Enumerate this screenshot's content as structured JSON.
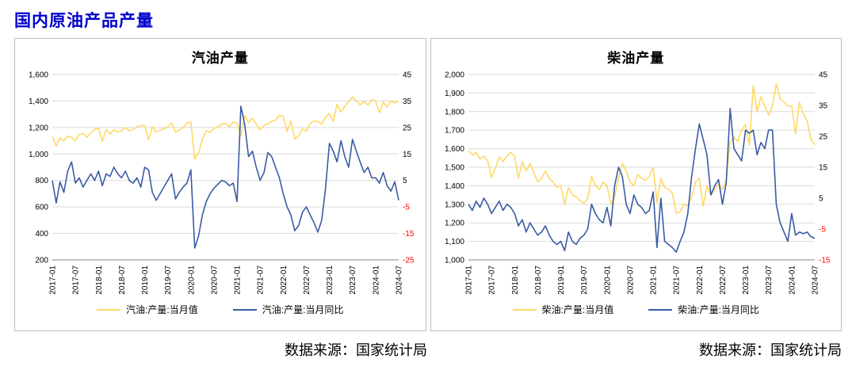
{
  "page": {
    "main_title": "国内原油产品产量",
    "source_left": "数据来源：国家统计局",
    "source_right": "数据来源：国家统计局"
  },
  "colors": {
    "value_line": "#FFD966",
    "yoy_line": "#3A5BA5",
    "negative_tick": "#FF0000",
    "grid": "#D9D9D9",
    "axis_line": "#808080",
    "title_blue": "#0000CC"
  },
  "chart_data": [
    {
      "type": "line",
      "title": "汽油产量",
      "x_start": "2017-01",
      "x_end": "2024-07",
      "x_tick_labels": [
        "2017-01",
        "2017-07",
        "2018-01",
        "2018-07",
        "2019-01",
        "2019-07",
        "2020-01",
        "2020-07",
        "2021-01",
        "2021-07",
        "2022-01",
        "2022-07",
        "2023-01",
        "2023-07",
        "2024-01",
        "2024-07"
      ],
      "left_axis": {
        "min": 200,
        "max": 1600,
        "ticks": [
          "1,600",
          "1,400",
          "1,200",
          "1,000",
          "800",
          "600",
          "400",
          "200"
        ]
      },
      "right_axis": {
        "min": -25,
        "max": 45,
        "ticks": [
          "45",
          "35",
          "25",
          "15",
          "5",
          "-5",
          "-15",
          "-25"
        ]
      },
      "legend_position": "bottom",
      "grid": true,
      "series": [
        {
          "name": "汽油:产量:当月值",
          "axis": "left",
          "color": "#FFD966",
          "values": [
            1130,
            1060,
            1120,
            1100,
            1135,
            1125,
            1100,
            1145,
            1155,
            1125,
            1160,
            1185,
            1195,
            1095,
            1185,
            1150,
            1185,
            1165,
            1175,
            1200,
            1175,
            1185,
            1205,
            1215,
            1215,
            1105,
            1205,
            1165,
            1180,
            1190,
            1205,
            1235,
            1165,
            1180,
            1200,
            1235,
            1240,
            960,
            1010,
            1110,
            1175,
            1165,
            1190,
            1205,
            1225,
            1230,
            1205,
            1240,
            1235,
            1135,
            1290,
            1235,
            1270,
            1225,
            1180,
            1215,
            1230,
            1245,
            1255,
            1290,
            1285,
            1170,
            1250,
            1115,
            1135,
            1190,
            1170,
            1230,
            1250,
            1245,
            1225,
            1275,
            1305,
            1245,
            1375,
            1315,
            1360,
            1395,
            1430,
            1400,
            1370,
            1395,
            1370,
            1410,
            1400,
            1310,
            1390,
            1355,
            1400,
            1385,
            1400
          ]
        },
        {
          "name": "汽油:产量:当月同比",
          "axis": "right",
          "color": "#3A5BA5",
          "values": [
            5,
            -3.5,
            4.5,
            0.5,
            8.5,
            12,
            4,
            6,
            2.5,
            5,
            7.5,
            5,
            8.5,
            3,
            7.5,
            6.5,
            10,
            7.5,
            6,
            8.5,
            5,
            4,
            6,
            2.5,
            10,
            9,
            0.5,
            -2.5,
            0,
            2.5,
            5,
            7.5,
            -2,
            0.5,
            2.5,
            4,
            9,
            -20.5,
            -16,
            -8,
            -3,
            0,
            2,
            3.5,
            5,
            4.5,
            3,
            4,
            -3,
            33,
            26,
            14,
            16,
            10,
            5,
            8,
            15.5,
            14,
            10,
            6,
            0,
            -5,
            -8,
            -14,
            -12,
            -7,
            -5,
            -8,
            -11,
            -14.5,
            -10,
            2,
            19,
            16,
            12,
            20,
            14,
            10,
            20.5,
            16,
            12,
            8,
            10,
            6,
            6,
            4,
            8,
            3,
            1,
            4.5,
            -2.5
          ]
        }
      ]
    },
    {
      "type": "line",
      "title": "柴油产量",
      "x_start": "2017-01",
      "x_end": "2024-07",
      "x_tick_labels": [
        "2017-01",
        "2017-07",
        "2018-01",
        "2018-07",
        "2019-01",
        "2019-07",
        "2020-01",
        "2020-07",
        "2021-01",
        "2021-07",
        "2022-01",
        "2022-07",
        "2023-01",
        "2023-07",
        "2024-01",
        "2024-07"
      ],
      "left_axis": {
        "min": 1000,
        "max": 2000,
        "ticks": [
          "2,000",
          "1,900",
          "1,800",
          "1,700",
          "1,600",
          "1,500",
          "1,400",
          "1,300",
          "1,200",
          "1,100",
          "1,000"
        ]
      },
      "right_axis": {
        "min": -15,
        "max": 45,
        "ticks": [
          "45",
          "35",
          "25",
          "15",
          "5",
          "-5",
          "-15"
        ]
      },
      "legend_position": "bottom",
      "grid": true,
      "series": [
        {
          "name": "柴油:产量:当月值",
          "axis": "left",
          "color": "#FFD966",
          "values": [
            1590,
            1565,
            1580,
            1545,
            1560,
            1535,
            1445,
            1495,
            1555,
            1530,
            1560,
            1580,
            1560,
            1440,
            1530,
            1480,
            1520,
            1470,
            1420,
            1440,
            1480,
            1440,
            1420,
            1390,
            1400,
            1300,
            1390,
            1350,
            1340,
            1320,
            1305,
            1330,
            1450,
            1400,
            1380,
            1420,
            1400,
            1300,
            1340,
            1440,
            1520,
            1480,
            1420,
            1400,
            1460,
            1440,
            1430,
            1450,
            1500,
            1310,
            1440,
            1390,
            1380,
            1360,
            1250,
            1260,
            1300,
            1290,
            1340,
            1420,
            1440,
            1290,
            1400,
            1350,
            1380,
            1410,
            1380,
            1430,
            1640,
            1660,
            1640,
            1700,
            1730,
            1620,
            1940,
            1800,
            1880,
            1830,
            1780,
            1830,
            1950,
            1870,
            1850,
            1830,
            1830,
            1680,
            1850,
            1790,
            1750,
            1650,
            1620
          ]
        },
        {
          "name": "柴油:产量:当月同比",
          "axis": "right",
          "color": "#3A5BA5",
          "values": [
            3,
            1,
            4,
            2,
            5,
            3,
            0,
            2,
            4,
            1,
            3,
            2,
            0,
            -4,
            -2,
            -6,
            -3,
            -5,
            -7,
            -6,
            -4,
            -7,
            -9,
            -10,
            -9,
            -12,
            -6,
            -9,
            -10,
            -8,
            -7,
            -5,
            3,
            0,
            -2,
            -3,
            2,
            -4,
            9,
            15,
            12,
            3,
            0,
            6,
            3,
            2,
            0,
            1,
            7,
            -11,
            5,
            -9,
            -10,
            -11,
            -12.5,
            -9,
            -6,
            0,
            12,
            21,
            29,
            24,
            19,
            6,
            9,
            11,
            3,
            10,
            34,
            21,
            19,
            17,
            27,
            26,
            27,
            19,
            23,
            21,
            27,
            27,
            3,
            -3,
            -6,
            -9,
            0,
            -7,
            -6,
            -6.5,
            -6,
            -7.5,
            -8
          ]
        }
      ]
    }
  ]
}
